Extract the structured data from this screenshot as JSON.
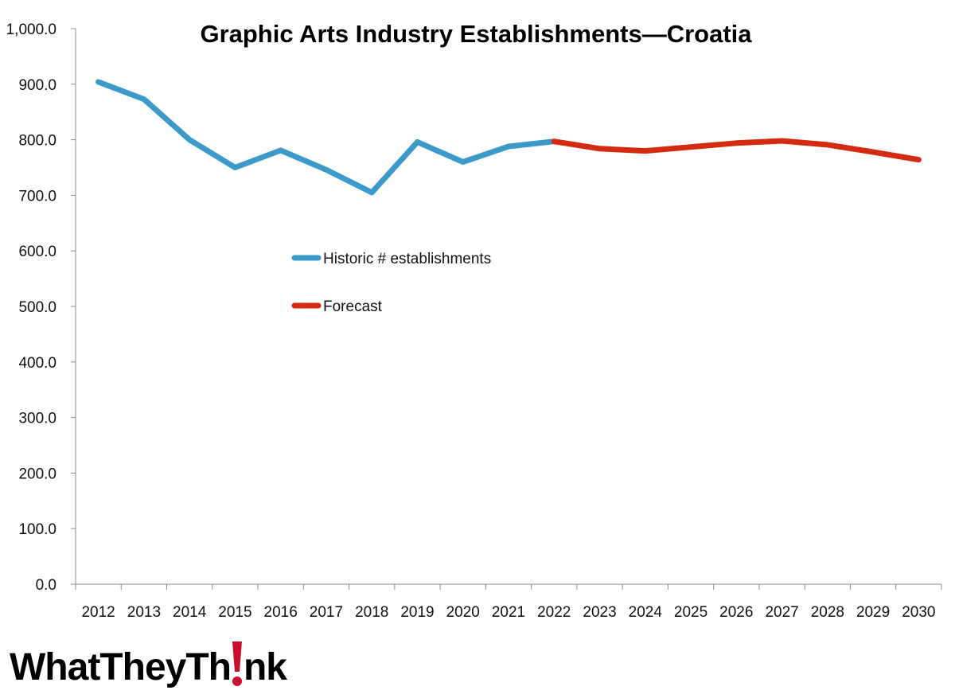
{
  "chart_data": {
    "type": "line",
    "title": "Graphic Arts Industry Establishments—Croatia",
    "categories": [
      "2012",
      "2013",
      "2014",
      "2015",
      "2016",
      "2017",
      "2018",
      "2019",
      "2020",
      "2021",
      "2022",
      "2023",
      "2024",
      "2025",
      "2026",
      "2027",
      "2028",
      "2029",
      "2030"
    ],
    "y_ticks": [
      "0.0",
      "100.0",
      "200.0",
      "300.0",
      "400.0",
      "500.0",
      "600.0",
      "700.0",
      "800.0",
      "900.0",
      "1,000.0"
    ],
    "ylim": [
      0,
      1000
    ],
    "grid": false,
    "legend_placement": "center-left",
    "series": [
      {
        "name": "Historic # establishments",
        "color": "#3b9ac9",
        "x": [
          "2012",
          "2013",
          "2014",
          "2015",
          "2016",
          "2017",
          "2018",
          "2019",
          "2020",
          "2021",
          "2022"
        ],
        "values": [
          904,
          873,
          800,
          750,
          781,
          746,
          705,
          796,
          760,
          788,
          797
        ]
      },
      {
        "name": "Forecast",
        "color": "#d42a10",
        "x": [
          "2022",
          "2023",
          "2024",
          "2025",
          "2026",
          "2027",
          "2028",
          "2029",
          "2030"
        ],
        "values": [
          797,
          784,
          780,
          787,
          794,
          798,
          791,
          778,
          764
        ]
      }
    ]
  },
  "logo": {
    "text_before": "WhatTheyTh",
    "text_after": "nk",
    "accent_color": "#c8102e"
  }
}
